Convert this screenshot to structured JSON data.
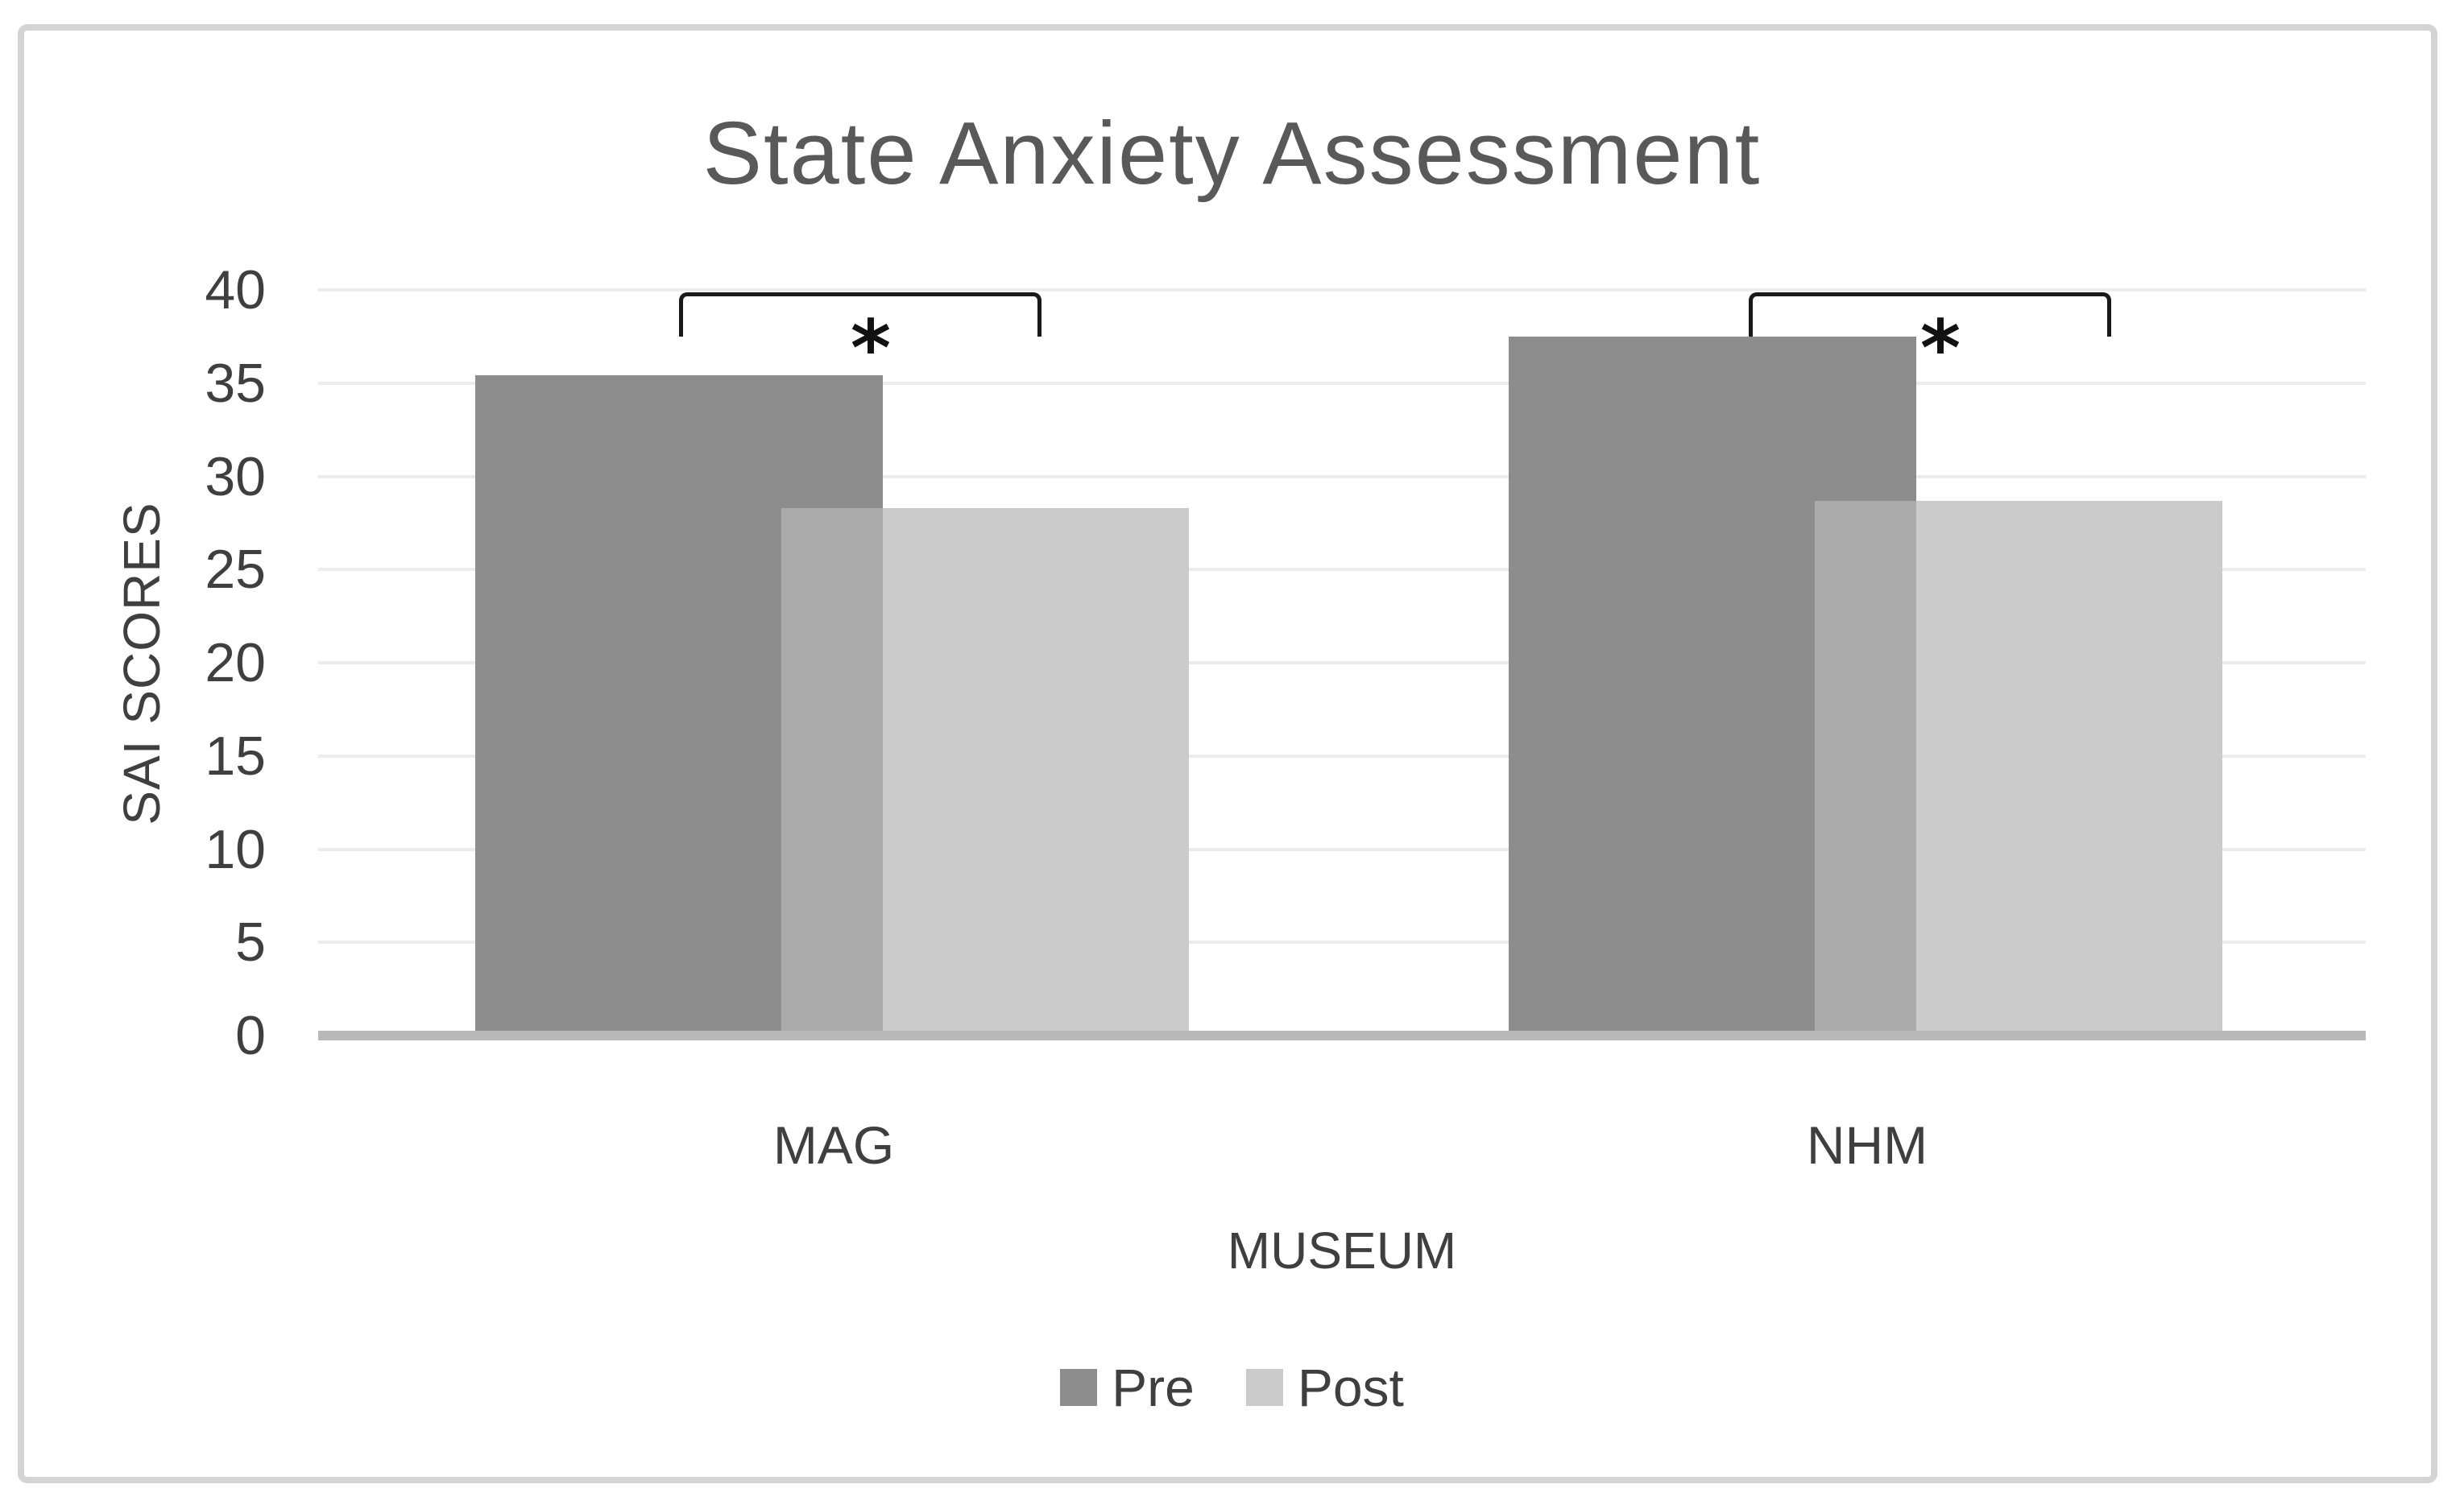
{
  "frame": {
    "background": "#ffffff",
    "border_color": "#d4d4d4"
  },
  "chart_data": {
    "type": "bar",
    "title": "State Anxiety Assessment",
    "categories": [
      "MAG",
      "NHM"
    ],
    "series": [
      {
        "name": "Pre",
        "values": [
          35.4,
          37.5
        ],
        "color": "#8D8D8D"
      },
      {
        "name": "Post",
        "values": [
          28.3,
          28.7
        ],
        "color": "#CBCBCB"
      }
    ],
    "bar_layout": "overlapping",
    "overlap_color": "#ABABAB",
    "xlabel": "MUSEUM",
    "ylabel": "SAI SCORES",
    "ylim": [
      0,
      40
    ],
    "yticks": [
      0,
      5,
      10,
      15,
      20,
      25,
      30,
      35,
      40
    ],
    "grid": true,
    "gridline_color": "#ECECEC",
    "axis_line_color": "#B8B8B8",
    "text_color": "#3F3F3F",
    "title_color": "#595959",
    "legend_position": "bottom",
    "annotations": [
      {
        "category": "MAG",
        "symbol": "*"
      },
      {
        "category": "NHM",
        "symbol": "*"
      }
    ]
  }
}
